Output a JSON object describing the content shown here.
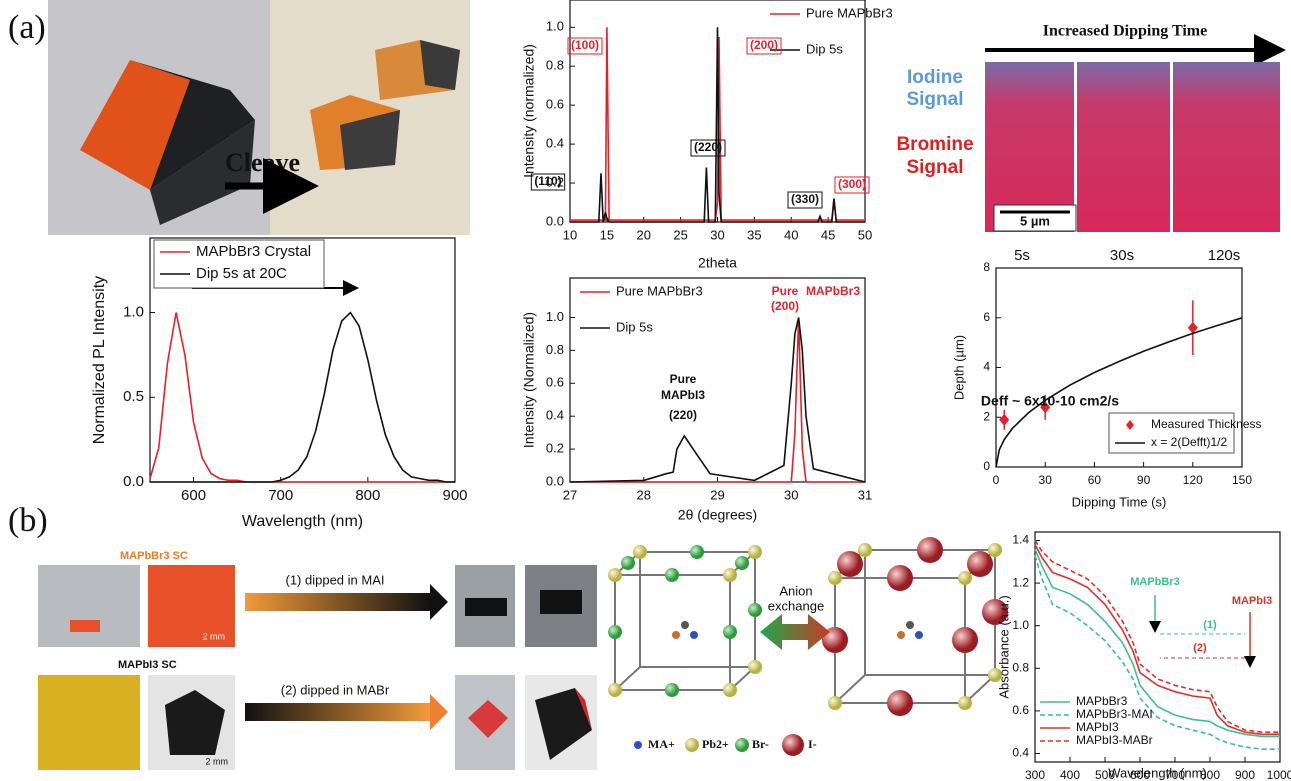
{
  "panel_labels": [
    "(a)",
    "(b)"
  ],
  "photos": {
    "cleave": "Cleave",
    "eds_title": "Increased Dipping Time",
    "iodine": [
      "Iodine",
      "Signal"
    ],
    "bromine": [
      "Bromine",
      "Signal"
    ],
    "scale": "5 µm",
    "times": [
      "5s",
      "30s",
      "120s"
    ]
  },
  "exchange": {
    "sc1": "MAPbBr3 SC",
    "sc2": "MAPbI3 SC",
    "step1": "(1) dipped in MAI",
    "step2": "(2) dipped in MABr",
    "scale1": "2 mm",
    "scale2": "2 mm",
    "anion": [
      "Anion",
      "exchange"
    ],
    "legend": [
      "MA+",
      "Pb2+",
      "Br-",
      "I-"
    ]
  },
  "chart_data": [
    {
      "type": "line",
      "x_label": "Wavelength (nm)",
      "y_label": "Normalized PL Intensity",
      "x": [
        550,
        560,
        570,
        580,
        590,
        600,
        610,
        620,
        630,
        640,
        650,
        660,
        670,
        680,
        690,
        700,
        710,
        720,
        730,
        740,
        750,
        760,
        770,
        780,
        790,
        800,
        810,
        820,
        830,
        840,
        850,
        860,
        870,
        880,
        890,
        900
      ],
      "series": [
        {
          "name": "MAPbBr3 Crystal",
          "color": "#e8202a",
          "values": [
            0.02,
            0.2,
            0.7,
            1.0,
            0.75,
            0.35,
            0.14,
            0.05,
            0.02,
            0.01,
            0.01,
            0,
            0,
            0,
            0,
            0,
            0,
            0,
            0,
            0,
            0,
            0,
            0,
            0,
            0,
            0,
            0,
            0,
            0,
            0,
            0,
            0,
            0,
            0,
            0,
            0
          ]
        },
        {
          "name": "Dip 5s at 20C",
          "color": "#111111",
          "values": [
            0,
            0,
            0,
            0,
            0,
            0,
            0,
            0,
            0,
            0,
            0,
            0,
            0,
            0,
            0,
            0.01,
            0.03,
            0.07,
            0.15,
            0.3,
            0.52,
            0.78,
            0.95,
            1.0,
            0.92,
            0.72,
            0.48,
            0.28,
            0.15,
            0.07,
            0.03,
            0.02,
            0.01,
            0.01,
            0,
            0
          ]
        }
      ],
      "xlim": [
        550,
        900
      ],
      "ylim": [
        0,
        1.44
      ],
      "xticks": [
        600,
        700,
        800,
        900
      ],
      "yticks": [
        {
          "value": 0,
          "label": "0.0"
        },
        {
          "value": 0.5,
          "label": "0.5"
        },
        {
          "value": 1,
          "label": "1.0"
        }
      ]
    },
    {
      "type": "line",
      "x_label": "2theta",
      "y_label": "Intensity (normalized)",
      "x": [
        10,
        13.9,
        14.2,
        14.5,
        14.8,
        15.0,
        15.3,
        20,
        28.2,
        28.5,
        28.8,
        29.7,
        30.0,
        30.2,
        30.5,
        40,
        43.6,
        43.9,
        44.2,
        45.5,
        45.8,
        46.1,
        50
      ],
      "series": [
        {
          "name": "Pure MAPbBr3",
          "color": "#e8202a",
          "values": [
            0.01,
            0.01,
            0.01,
            0.01,
            0.01,
            1.0,
            0.01,
            0.01,
            0.01,
            0.01,
            0.01,
            0.01,
            0.1,
            0.95,
            0.01,
            0.01,
            0.01,
            0.01,
            0.01,
            0.01,
            0.12,
            0.01,
            0.01
          ]
        },
        {
          "name": "Dip 5s",
          "color": "#111111",
          "values": [
            0,
            0,
            0.25,
            0,
            0.05,
            0.02,
            0,
            0,
            0,
            0.28,
            0,
            0,
            1.0,
            0.15,
            0,
            0,
            0,
            0.03,
            0,
            0,
            0.12,
            0,
            0
          ]
        }
      ],
      "xlim": [
        10,
        50
      ],
      "ylim": [
        0,
        1.14
      ],
      "xticks": [
        10,
        15,
        20,
        25,
        30,
        35,
        40,
        45,
        50
      ],
      "yticks": [
        {
          "value": 0,
          "label": "0.0"
        },
        {
          "value": 0.2,
          "label": "0.2"
        },
        {
          "value": 0.4,
          "label": "0.4"
        },
        {
          "value": 0.6,
          "label": "0.6"
        },
        {
          "value": 0.8,
          "label": "0.8"
        },
        {
          "value": 1,
          "label": "1.0"
        }
      ],
      "annotations": [
        {
          "text": "(100)",
          "color": "#e8202a"
        },
        {
          "text": "(200)",
          "color": "#e8202a"
        },
        {
          "text": "(110)",
          "color": "#111111"
        },
        {
          "text": "(220)",
          "color": "#111111"
        },
        {
          "text": "(330)",
          "color": "#111111"
        },
        {
          "text": "(300)",
          "color": "#e8202a"
        }
      ]
    },
    {
      "type": "line",
      "x_label": "2θ (degrees)",
      "y_label": "Intensity (Normalized)",
      "x": [
        27,
        28,
        28.3,
        28.4,
        28.45,
        28.55,
        28.7,
        28.9,
        29.5,
        29.9,
        30.0,
        30.05,
        30.1,
        30.15,
        30.2,
        30.3,
        31
      ],
      "series": [
        {
          "name": "Pure MAPbBr3",
          "color": "#e8202a",
          "values": [
            0,
            0,
            0,
            0,
            0,
            0,
            0,
            0,
            0,
            0,
            0,
            0.3,
            1.0,
            0.2,
            0,
            0,
            0
          ]
        },
        {
          "name": "Dip 5s",
          "color": "#111111",
          "values": [
            0,
            0.01,
            0.05,
            0.06,
            0.2,
            0.28,
            0.18,
            0.05,
            0.01,
            0.1,
            0.6,
            0.9,
            1.0,
            0.8,
            0.4,
            0.08,
            0
          ]
        }
      ],
      "xlim": [
        27,
        31
      ],
      "ylim": [
        0,
        1.24
      ],
      "xticks": [
        27,
        28,
        29,
        30,
        31
      ],
      "yticks": [
        {
          "value": 0,
          "label": "0.0"
        },
        {
          "value": 0.2,
          "label": "0.2"
        },
        {
          "value": 0.4,
          "label": "0.4"
        },
        {
          "value": 0.6,
          "label": "0.6"
        },
        {
          "value": 0.8,
          "label": "0.8"
        },
        {
          "value": 1,
          "label": "1.0"
        }
      ],
      "annotations": [
        {
          "text": "Pure",
          "color": "#111111"
        },
        {
          "text": "MAPbI3",
          "color": "#111111"
        },
        {
          "text": "(220)",
          "color": "#111111"
        },
        {
          "text": "Pure",
          "color": "#e8202a"
        },
        {
          "text": "MAPbBr3",
          "color": "#e8202a"
        },
        {
          "text": "(200)",
          "color": "#e8202a"
        }
      ]
    },
    {
      "type": "scatter",
      "x_label": "Dipping Time (s)",
      "y_label": "Depth (µm)",
      "series": [
        {
          "name": "Measured Thickness",
          "color": "#e8202a",
          "mode": "markers",
          "x": [
            5,
            30,
            120
          ],
          "values": [
            1.9,
            2.4,
            5.6
          ],
          "errors": [
            0.4,
            0.5,
            1.1
          ]
        },
        {
          "name": "x = 2(Defft)1/2",
          "color": "#111111",
          "mode": "line",
          "x": [
            0,
            2,
            5,
            10,
            20,
            30,
            45,
            60,
            75,
            90,
            105,
            120,
            135,
            150
          ],
          "values": [
            0,
            0.69,
            1.1,
            1.55,
            2.19,
            2.68,
            3.29,
            3.8,
            4.24,
            4.65,
            5.02,
            5.37,
            5.69,
            6.0
          ]
        }
      ],
      "xlim": [
        0,
        150
      ],
      "ylim": [
        0,
        8
      ],
      "xticks": [
        0,
        30,
        60,
        90,
        120,
        150
      ],
      "yticks": [
        0,
        2,
        4,
        6,
        8
      ],
      "annotations": [
        {
          "text": "Deff ~ 6x10-10 cm2/s",
          "color": "#111111"
        }
      ]
    },
    {
      "type": "line",
      "x_label": "Wavelength (nm)",
      "y_label": "Absorbance (a.u.)",
      "x": [
        300,
        320,
        350,
        400,
        450,
        500,
        550,
        580,
        600,
        650,
        700,
        750,
        800,
        820,
        850,
        900,
        950,
        1000
      ],
      "series": [
        {
          "name": "MAPbBr3",
          "color": "#3cbf8f",
          "dash": false,
          "values": [
            1.36,
            1.28,
            1.18,
            1.15,
            1.1,
            1.02,
            0.92,
            0.82,
            0.72,
            0.62,
            0.58,
            0.56,
            0.55,
            0.53,
            0.51,
            0.49,
            0.48,
            0.48
          ]
        },
        {
          "name": "MAPbBr3-MAI",
          "color": "#3cbf8f",
          "dash": true,
          "values": [
            1.33,
            1.22,
            1.1,
            1.06,
            1.0,
            0.93,
            0.83,
            0.75,
            0.66,
            0.57,
            0.53,
            0.51,
            0.49,
            0.47,
            0.45,
            0.43,
            0.42,
            0.42
          ]
        },
        {
          "name": "MAPbI3",
          "color": "#e0302a",
          "dash": false,
          "values": [
            1.38,
            1.32,
            1.25,
            1.22,
            1.18,
            1.1,
            0.98,
            0.88,
            0.78,
            0.72,
            0.69,
            0.67,
            0.66,
            0.58,
            0.53,
            0.5,
            0.49,
            0.49
          ]
        },
        {
          "name": "MAPbI3-MABr",
          "color": "#e0302a",
          "dash": true,
          "values": [
            1.4,
            1.35,
            1.3,
            1.26,
            1.22,
            1.14,
            1.02,
            0.92,
            0.82,
            0.75,
            0.72,
            0.7,
            0.69,
            0.62,
            0.55,
            0.51,
            0.5,
            0.5
          ]
        }
      ],
      "xlim": [
        300,
        1000
      ],
      "ylim": [
        0.36,
        1.44
      ],
      "xticks": [
        300,
        400,
        500,
        600,
        700,
        800,
        900,
        1000
      ],
      "yticks": [
        0.4,
        0.6,
        0.8,
        {
          "value": 1,
          "label": "1.0"
        },
        1.2,
        1.4
      ],
      "annotations": [
        {
          "text": "MAPbBr3",
          "color": "#3cbf8f"
        },
        {
          "text": "MAPbI3",
          "color": "#e0302a"
        },
        {
          "text": "(1)",
          "color": "#3cbf8f"
        },
        {
          "text": "(2)",
          "color": "#e0302a"
        }
      ]
    }
  ]
}
